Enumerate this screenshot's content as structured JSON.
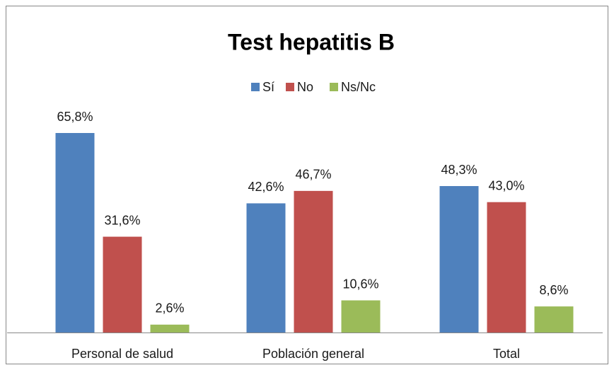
{
  "chart_data": {
    "type": "bar",
    "title": "Test hepatitis B",
    "categories": [
      "Personal de salud",
      "Población general",
      "Total"
    ],
    "series": [
      {
        "name": "Sí",
        "color": "#4f81bd",
        "values": [
          65.8,
          42.6,
          48.3
        ],
        "value_labels": [
          "65,8%",
          "42,6%",
          "48,3%"
        ]
      },
      {
        "name": "No",
        "color": "#c0504d",
        "values": [
          31.6,
          46.7,
          43.0
        ],
        "value_labels": [
          "31,6%",
          "46,7%",
          "43,0%"
        ]
      },
      {
        "name": "Ns/Nc",
        "color": "#9bbb59",
        "values": [
          2.6,
          10.6,
          8.6
        ],
        "value_labels": [
          "2,6%",
          "10,6%",
          "8,6%"
        ]
      }
    ],
    "legend": "top"
  }
}
